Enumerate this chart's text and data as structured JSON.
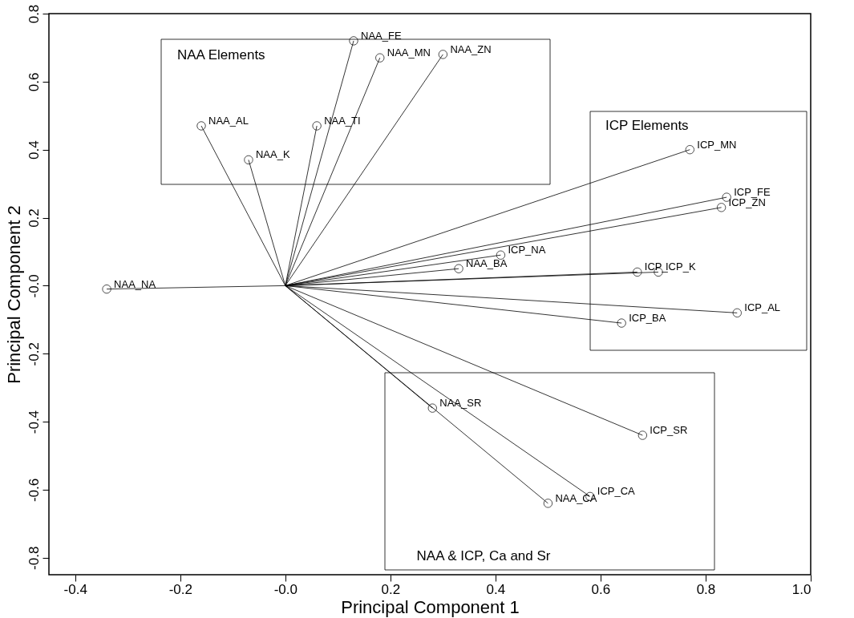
{
  "chart_data": {
    "type": "scatter",
    "xlabel": "Principal Component 1",
    "ylabel": "Principal Component 2",
    "xlim": [
      -0.45,
      1.0
    ],
    "ylim": [
      -0.85,
      0.8
    ],
    "xticks": [
      -0.4,
      -0.2,
      {
        "value": 0,
        "label": "-0.0"
      },
      0.2,
      0.4,
      0.6,
      0.8,
      {
        "value": 1.0,
        "label": "1.0"
      }
    ],
    "yticks": [
      -0.8,
      -0.6,
      -0.4,
      -0.2,
      {
        "value": 0,
        "label": "-0.0"
      },
      0.2,
      0.4,
      0.6,
      0.8
    ],
    "grid": false,
    "marker": "circle",
    "series": [
      {
        "color": "#000000",
        "x": [
          -0.34,
          -0.16,
          -0.07,
          0.06,
          0.13,
          0.18,
          0.3,
          0.33,
          0.41,
          0.77,
          0.84,
          0.83,
          0.67,
          0.71,
          0.86,
          0.64,
          0.28,
          0.68,
          0.5,
          0.58
        ],
        "values": [
          -0.01,
          0.47,
          0.37,
          0.47,
          0.72,
          0.67,
          0.68,
          0.05,
          0.09,
          0.4,
          0.26,
          0.23,
          0.04,
          0.04,
          -0.08,
          -0.11,
          -0.36,
          -0.44,
          -0.64,
          -0.62
        ],
        "value_labels": [
          "NAA_NA",
          "NAA_AL",
          "NAA_K",
          "NAA_TI",
          "NAA_FE",
          "NAA_MN",
          "NAA_ZN",
          "NAA_BA",
          "ICP_NA",
          "ICP_MN",
          "ICP_FE",
          "ICP_ZN",
          "ICP_",
          "ICP_K",
          "ICP_AL",
          "ICP_BA",
          "NAA_SR",
          "ICP_SR",
          "NAA_CA",
          "ICP_CA"
        ]
      }
    ],
    "annotations": [
      "NAA Elements",
      "ICP Elements",
      "NAA & ICP, Ca and Sr"
    ]
  }
}
